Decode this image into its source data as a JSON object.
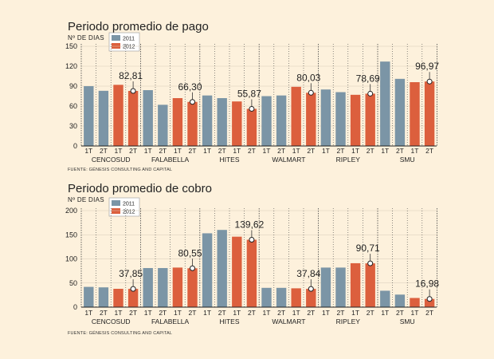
{
  "colors": {
    "series_2011": "#7b95a6",
    "series_2012": "#dc5f3d",
    "background": "#fdf1dc"
  },
  "chart_data": [
    {
      "type": "bar",
      "title": "Periodo promedio de pago",
      "ylabel": "Nº DE DIAS",
      "source": "FUENTE: GÉNESIS CONSULTING AND CAPITAL",
      "ylim": [
        0,
        150
      ],
      "yticks": [
        "0",
        "30",
        "60",
        "90",
        "120",
        "150"
      ],
      "groups": [
        "CENCOSUD",
        "FALABELLA",
        "HITES",
        "WALMART",
        "RIPLEY",
        "SMU"
      ],
      "sublabels": [
        "1T",
        "2T",
        "1T",
        "2T"
      ],
      "legend": [
        "2011",
        "2012"
      ],
      "values": [
        [
          90,
          83,
          92,
          82.81
        ],
        [
          84,
          62,
          72,
          66.3
        ],
        [
          76,
          72,
          67,
          55.87
        ],
        [
          75,
          76,
          89,
          80.03
        ],
        [
          85,
          81,
          77,
          78.69
        ],
        [
          127,
          101,
          96,
          96.97
        ]
      ],
      "labels": [
        "82,81",
        "66,30",
        "55,87",
        "80,03",
        "78,69",
        "96,97"
      ]
    },
    {
      "type": "bar",
      "title": "Periodo promedio de cobro",
      "ylabel": "Nº DE DIAS",
      "source": "FUENTE: GÉNESIS CONSULTING AND CAPITAL",
      "ylim": [
        0,
        200
      ],
      "yticks": [
        "0",
        "50",
        "100",
        "150",
        "200"
      ],
      "groups": [
        "CENCOSUD",
        "FALABELLA",
        "HITES",
        "WALMART",
        "RIPLEY",
        "SMU"
      ],
      "sublabels": [
        "1T",
        "2T",
        "1T",
        "2T"
      ],
      "legend": [
        "2011",
        "2012"
      ],
      "values": [
        [
          42,
          41,
          38,
          37.85
        ],
        [
          81,
          81,
          82,
          80.55
        ],
        [
          153,
          160,
          146,
          139.62
        ],
        [
          40,
          40,
          39,
          37.84
        ],
        [
          82,
          82,
          91,
          90.71
        ],
        [
          34,
          26,
          19,
          16.98
        ]
      ],
      "labels": [
        "37,85",
        "80,55",
        "139,62",
        "37,84",
        "90,71",
        "16,98"
      ]
    }
  ]
}
